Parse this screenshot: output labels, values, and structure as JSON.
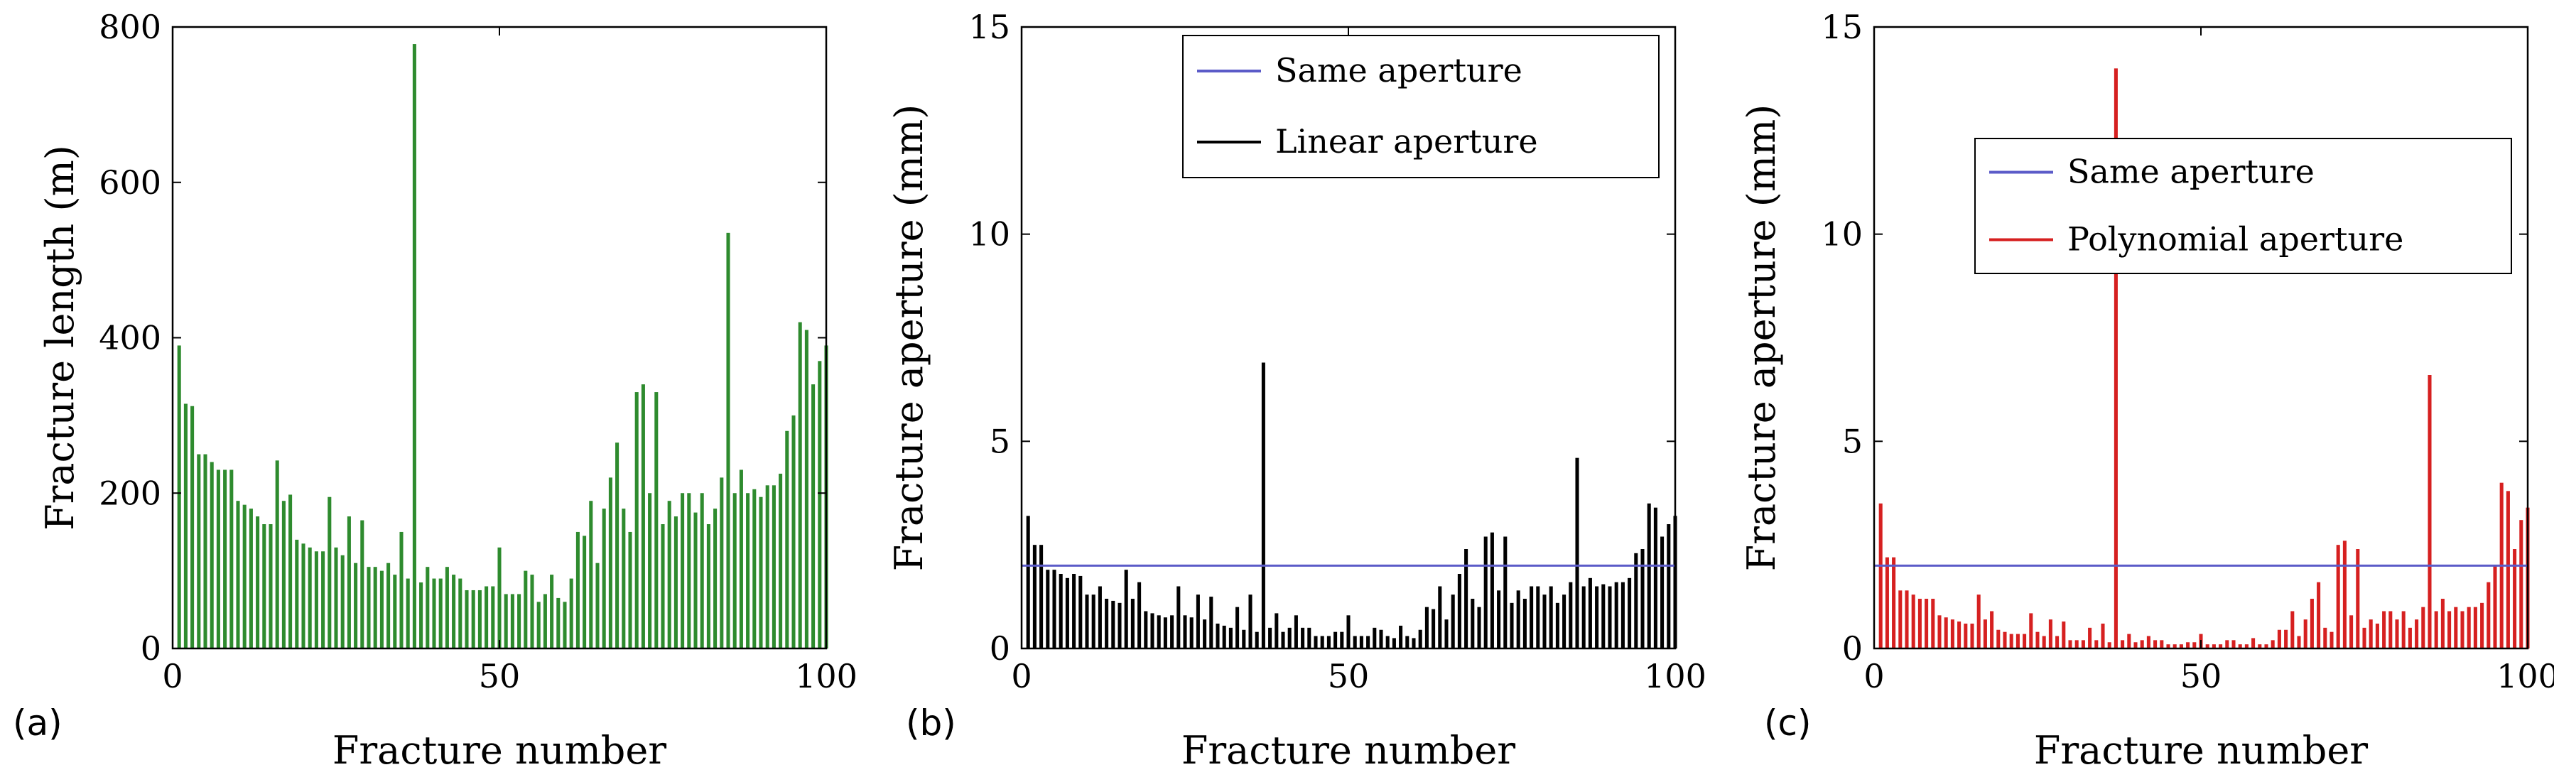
{
  "chart_data": [
    {
      "type": "bar",
      "panel_label": "(a)",
      "xlabel": "Fracture number",
      "ylabel": "Fracture length (m)",
      "xlim": [
        0,
        100
      ],
      "ylim": [
        0,
        800
      ],
      "xticks": [
        "0",
        "50",
        "100"
      ],
      "yticks": [
        "0",
        "200",
        "400",
        "600",
        "800"
      ],
      "xtick_values": [
        0,
        50,
        100
      ],
      "ytick_values": [
        0,
        200,
        400,
        600,
        800
      ],
      "bar_color": "#2e8b2e",
      "legend": null,
      "x": [
        1,
        2,
        3,
        4,
        5,
        6,
        7,
        8,
        9,
        10,
        11,
        12,
        13,
        14,
        15,
        16,
        17,
        18,
        19,
        20,
        21,
        22,
        23,
        24,
        25,
        26,
        27,
        28,
        29,
        30,
        31,
        32,
        33,
        34,
        35,
        36,
        37,
        38,
        39,
        40,
        41,
        42,
        43,
        44,
        45,
        46,
        47,
        48,
        49,
        50,
        51,
        52,
        53,
        54,
        55,
        56,
        57,
        58,
        59,
        60,
        61,
        62,
        63,
        64,
        65,
        66,
        67,
        68,
        69,
        70,
        71,
        72,
        73,
        74,
        75,
        76,
        77,
        78,
        79,
        80,
        81,
        82,
        83,
        84,
        85,
        86,
        87,
        88,
        89,
        90,
        91,
        92,
        93,
        94,
        95,
        96,
        97,
        98,
        99,
        100
      ],
      "values": [
        390,
        315,
        312,
        250,
        250,
        240,
        230,
        230,
        230,
        190,
        185,
        180,
        170,
        160,
        160,
        242,
        190,
        198,
        140,
        135,
        130,
        125,
        125,
        195,
        130,
        120,
        170,
        110,
        165,
        105,
        105,
        100,
        110,
        95,
        150,
        90,
        778,
        85,
        105,
        90,
        90,
        105,
        95,
        90,
        75,
        75,
        75,
        80,
        80,
        130,
        70,
        70,
        70,
        100,
        95,
        60,
        70,
        95,
        65,
        60,
        90,
        150,
        145,
        190,
        110,
        180,
        220,
        265,
        180,
        150,
        330,
        340,
        200,
        330,
        160,
        190,
        170,
        200,
        200,
        175,
        200,
        160,
        180,
        220,
        535,
        200,
        230,
        200,
        205,
        195,
        210,
        210,
        225,
        280,
        300,
        420,
        410,
        340,
        370,
        390
      ]
    },
    {
      "type": "bar",
      "panel_label": "(b)",
      "xlabel": "Fracture number",
      "ylabel": "Fracture aperture (mm)",
      "xlim": [
        0,
        100
      ],
      "ylim": [
        0,
        15
      ],
      "xticks": [
        "0",
        "50",
        "100"
      ],
      "yticks": [
        "0",
        "5",
        "10",
        "15"
      ],
      "xtick_values": [
        0,
        50,
        100
      ],
      "ytick_values": [
        0,
        5,
        10,
        15
      ],
      "bar_color": "#000000",
      "reference_line": {
        "name": "Same aperture",
        "value": 2,
        "color": "#5b5bc8"
      },
      "legend": [
        {
          "label": "Same aperture",
          "color": "#5b5bc8"
        },
        {
          "label": "Linear aperture",
          "color": "#000000"
        }
      ],
      "x": [
        1,
        2,
        3,
        4,
        5,
        6,
        7,
        8,
        9,
        10,
        11,
        12,
        13,
        14,
        15,
        16,
        17,
        18,
        19,
        20,
        21,
        22,
        23,
        24,
        25,
        26,
        27,
        28,
        29,
        30,
        31,
        32,
        33,
        34,
        35,
        36,
        37,
        38,
        39,
        40,
        41,
        42,
        43,
        44,
        45,
        46,
        47,
        48,
        49,
        50,
        51,
        52,
        53,
        54,
        55,
        56,
        57,
        58,
        59,
        60,
        61,
        62,
        63,
        64,
        65,
        66,
        67,
        68,
        69,
        70,
        71,
        72,
        73,
        74,
        75,
        76,
        77,
        78,
        79,
        80,
        81,
        82,
        83,
        84,
        85,
        86,
        87,
        88,
        89,
        90,
        91,
        92,
        93,
        94,
        95,
        96,
        97,
        98,
        99,
        100
      ],
      "values": [
        3.2,
        2.5,
        2.5,
        1.9,
        1.9,
        1.8,
        1.7,
        1.8,
        1.75,
        1.3,
        1.3,
        1.5,
        1.2,
        1.15,
        1.1,
        1.9,
        1.2,
        1.6,
        0.9,
        0.85,
        0.8,
        0.75,
        0.8,
        1.5,
        0.8,
        0.75,
        1.3,
        0.7,
        1.25,
        0.6,
        0.55,
        0.5,
        1.0,
        0.45,
        1.3,
        0.4,
        6.9,
        0.5,
        0.85,
        0.4,
        0.5,
        0.8,
        0.5,
        0.5,
        0.3,
        0.3,
        0.3,
        0.4,
        0.4,
        0.8,
        0.3,
        0.3,
        0.3,
        0.5,
        0.45,
        0.3,
        0.25,
        0.55,
        0.3,
        0.25,
        0.45,
        1.0,
        0.95,
        1.5,
        0.7,
        1.3,
        1.8,
        2.4,
        1.2,
        1.0,
        2.7,
        2.8,
        1.4,
        2.7,
        1.1,
        1.4,
        1.2,
        1.5,
        1.5,
        1.3,
        1.5,
        1.1,
        1.3,
        1.6,
        4.6,
        1.5,
        1.7,
        1.5,
        1.55,
        1.5,
        1.6,
        1.6,
        1.7,
        2.3,
        2.4,
        3.5,
        3.4,
        2.7,
        3.0,
        3.2
      ]
    },
    {
      "type": "bar",
      "panel_label": "(c)",
      "xlabel": "Fracture number",
      "ylabel": "Fracture aperture (mm)",
      "xlim": [
        0,
        100
      ],
      "ylim": [
        0,
        15
      ],
      "xticks": [
        "0",
        "50",
        "100"
      ],
      "yticks": [
        "0",
        "5",
        "10",
        "15"
      ],
      "xtick_values": [
        0,
        50,
        100
      ],
      "ytick_values": [
        0,
        5,
        10,
        15
      ],
      "bar_color": "#d62020",
      "reference_line": {
        "name": "Same aperture",
        "value": 2,
        "color": "#5b5bc8"
      },
      "legend": [
        {
          "label": "Same aperture",
          "color": "#5b5bc8"
        },
        {
          "label": "Polynomial aperture",
          "color": "#d62020"
        }
      ],
      "x": [
        1,
        2,
        3,
        4,
        5,
        6,
        7,
        8,
        9,
        10,
        11,
        12,
        13,
        14,
        15,
        16,
        17,
        18,
        19,
        20,
        21,
        22,
        23,
        24,
        25,
        26,
        27,
        28,
        29,
        30,
        31,
        32,
        33,
        34,
        35,
        36,
        37,
        38,
        39,
        40,
        41,
        42,
        43,
        44,
        45,
        46,
        47,
        48,
        49,
        50,
        51,
        52,
        53,
        54,
        55,
        56,
        57,
        58,
        59,
        60,
        61,
        62,
        63,
        64,
        65,
        66,
        67,
        68,
        69,
        70,
        71,
        72,
        73,
        74,
        75,
        76,
        77,
        78,
        79,
        80,
        81,
        82,
        83,
        84,
        85,
        86,
        87,
        88,
        89,
        90,
        91,
        92,
        93,
        94,
        95,
        96,
        97,
        98,
        99,
        100
      ],
      "values": [
        3.5,
        2.2,
        2.2,
        1.4,
        1.4,
        1.3,
        1.2,
        1.2,
        1.2,
        0.8,
        0.75,
        0.7,
        0.65,
        0.6,
        0.6,
        1.3,
        0.7,
        0.9,
        0.45,
        0.4,
        0.35,
        0.35,
        0.35,
        0.85,
        0.4,
        0.3,
        0.7,
        0.3,
        0.65,
        0.2,
        0.2,
        0.2,
        0.5,
        0.2,
        0.6,
        0.15,
        14.0,
        0.2,
        0.35,
        0.15,
        0.2,
        0.3,
        0.2,
        0.2,
        0.1,
        0.1,
        0.1,
        0.15,
        0.15,
        0.35,
        0.1,
        0.1,
        0.1,
        0.2,
        0.2,
        0.1,
        0.1,
        0.25,
        0.1,
        0.1,
        0.2,
        0.45,
        0.45,
        0.9,
        0.3,
        0.7,
        1.2,
        1.6,
        0.5,
        0.4,
        2.5,
        2.6,
        0.8,
        2.4,
        0.5,
        0.7,
        0.6,
        0.9,
        0.9,
        0.7,
        0.9,
        0.5,
        0.7,
        1.0,
        6.6,
        0.9,
        1.2,
        0.9,
        1.0,
        0.9,
        1.0,
        1.0,
        1.1,
        1.6,
        2.0,
        4.0,
        3.8,
        2.4,
        3.1,
        3.4
      ]
    }
  ]
}
